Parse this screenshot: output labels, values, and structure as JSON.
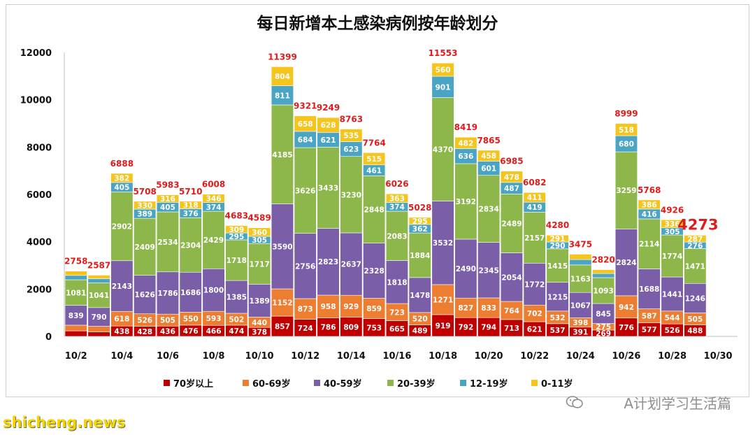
{
  "watermark": "A计划学习生活篇",
  "site": "shicheng.news",
  "colors": {
    "70+": "#c00000",
    "60-69": "#ed7d31",
    "40-59": "#7a5ea8",
    "20-39": "#8db74a",
    "12-19": "#4aa5c4",
    "0-11": "#f5c51d"
  },
  "chart_data": {
    "type": "bar",
    "stacked": true,
    "title": "每日新增本土感染病例按年龄划分",
    "ylim": [
      0,
      12000
    ],
    "yticks": [
      0,
      2000,
      4000,
      6000,
      8000,
      10000,
      12000
    ],
    "grid": false,
    "legend_position": "bottom",
    "categories": [
      "10/2",
      "10/3",
      "10/4",
      "10/5",
      "10/6",
      "10/7",
      "10/8",
      "10/9",
      "10/10",
      "10/11",
      "10/12",
      "10/13",
      "10/14",
      "10/15",
      "10/16",
      "10/17",
      "10/18",
      "10/19",
      "10/20",
      "10/21",
      "10/22",
      "10/23",
      "10/24",
      "10/25",
      "10/26",
      "10/27",
      "10/28",
      "10/29"
    ],
    "xtick_labels": [
      "10/2",
      "10/4",
      "10/6",
      "10/8",
      "10/10",
      "10/12",
      "10/14",
      "10/16",
      "10/18",
      "10/20",
      "10/22",
      "10/24",
      "10/26",
      "10/28",
      "10/30"
    ],
    "series": [
      {
        "name": "70岁以上",
        "color_key": "70+",
        "values": [
          232,
          188,
          438,
          428,
          436,
          476,
          466,
          474,
          378,
          857,
          724,
          786,
          809,
          753,
          665,
          489,
          919,
          792,
          794,
          713,
          621,
          537,
          391,
          269,
          776,
          577,
          526,
          488
        ]
      },
      {
        "name": "60-69岁",
        "color_key": "60-69",
        "values": [
          242,
          240,
          618,
          526,
          505,
          550,
          593,
          502,
          440,
          1152,
          873,
          958,
          929,
          859,
          723,
          520,
          1271,
          827,
          833,
          764,
          702,
          532,
          398,
          275,
          942,
          587,
          544,
          505
        ]
      },
      {
        "name": "40-59岁",
        "color_key": "40-59",
        "values": [
          839,
          790,
          2143,
          1626,
          1786,
          1686,
          1800,
          1385,
          1389,
          3590,
          2756,
          2823,
          2637,
          2328,
          1818,
          1478,
          3532,
          2490,
          2345,
          2054,
          1772,
          1215,
          1067,
          845,
          2824,
          1688,
          1441,
          1246
        ]
      },
      {
        "name": "20-39岁",
        "color_key": "20-39",
        "values": [
          1081,
          1041,
          2902,
          2409,
          2534,
          2304,
          2429,
          1718,
          1717,
          4185,
          3626,
          3433,
          3230,
          2848,
          2083,
          1884,
          4370,
          3192,
          2834,
          2489,
          2157,
          1415,
          1163,
          1093,
          3259,
          2114,
          1774,
          1471
        ]
      },
      {
        "name": "12-19岁",
        "color_key": "12-19",
        "values": [
          184,
          182,
          405,
          389,
          405,
          376,
          374,
          295,
          305,
          811,
          684,
          621,
          623,
          461,
          374,
          362,
          901,
          636,
          601,
          487,
          419,
          290,
          227,
          172,
          680,
          416,
          305,
          276
        ]
      },
      {
        "name": "0-11岁",
        "color_key": "0-11",
        "values": [
          180,
          146,
          382,
          330,
          316,
          318,
          346,
          309,
          360,
          804,
          658,
          628,
          535,
          515,
          363,
          295,
          560,
          482,
          458,
          478,
          411,
          291,
          229,
          166,
          518,
          386,
          336,
          287
        ]
      }
    ],
    "segment_labels": [
      [
        "232",
        "188",
        "438",
        "428",
        "436",
        "476",
        "466",
        "474",
        "378",
        "857",
        "724",
        "786",
        "809",
        "753",
        "665",
        "489",
        "919",
        "792",
        "794",
        "713",
        "621",
        "537",
        "391",
        "269",
        "776",
        "577",
        "526",
        "488"
      ],
      [
        "",
        "",
        "618",
        "526",
        "505",
        "550",
        "593",
        "502",
        "440",
        "1152",
        "873",
        "958",
        "929",
        "859",
        "723",
        "520",
        "1271",
        "827",
        "833",
        "764",
        "702",
        "532",
        "398",
        "275",
        "942",
        "587",
        "544",
        "505"
      ],
      [
        "839",
        "790",
        "2143",
        "1626",
        "1786",
        "1686",
        "1800",
        "1385",
        "1389",
        "3590",
        "2756",
        "2823",
        "2637",
        "2328",
        "1818",
        "1478",
        "3532",
        "2490",
        "2345",
        "2054",
        "1772",
        "1215",
        "1067",
        "845",
        "2824",
        "1688",
        "1441",
        "1246"
      ],
      [
        "1081",
        "1041",
        "2902",
        "2409",
        "2534",
        "2304",
        "2429",
        "1718",
        "1717",
        "4185",
        "3626",
        "3433",
        "3230",
        "2848",
        "2083",
        "1884",
        "4370",
        "3192",
        "2834",
        "2489",
        "2157",
        "1415",
        "1163",
        "1093",
        "3259",
        "2114",
        "1774",
        "1471"
      ],
      [
        "184",
        "182",
        "405",
        "389",
        "405",
        "376",
        "374",
        "295",
        "305",
        "811",
        "684",
        "621",
        "623",
        "461",
        "374",
        "362",
        "901",
        "636",
        "601",
        "487",
        "419",
        "290",
        "227",
        "172",
        "680",
        "416",
        "305",
        "276"
      ],
      [
        "",
        "",
        "382",
        "330",
        "316",
        "318",
        "346",
        "309",
        "360",
        "804",
        "658",
        "628",
        "535",
        "515",
        "363",
        "295",
        "560",
        "482",
        "458",
        "478",
        "411",
        "291",
        "229",
        "166",
        "518",
        "386",
        "336",
        "287"
      ]
    ],
    "totals": [
      2758,
      2587,
      6888,
      5708,
      5983,
      5710,
      6008,
      4683,
      4589,
      11399,
      9321,
      9249,
      8763,
      7764,
      6026,
      5028,
      11553,
      8419,
      7865,
      6985,
      6082,
      4280,
      3475,
      2820,
      8999,
      5768,
      4926,
      4273
    ],
    "highlight_total_index": 27,
    "legend": [
      "70岁以上",
      "60-69岁",
      "40-59岁",
      "20-39岁",
      "12-19岁",
      "0-11岁"
    ]
  }
}
